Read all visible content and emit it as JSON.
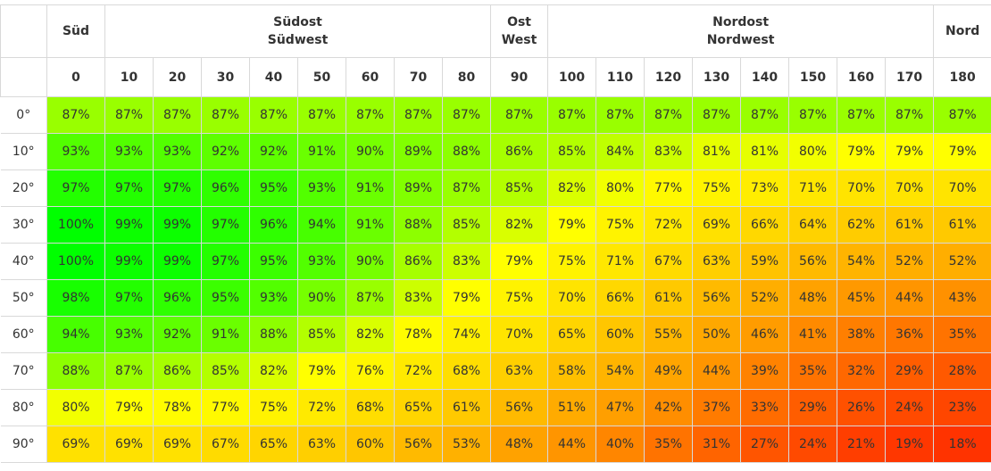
{
  "chart_data": {
    "type": "heatmap",
    "direction_groups": [
      {
        "labels": [
          "Süd"
        ],
        "span": 1
      },
      {
        "labels": [
          "Südost",
          "Südwest"
        ],
        "span": 8
      },
      {
        "labels": [
          "Ost",
          "West"
        ],
        "span": 1
      },
      {
        "labels": [
          "Nordost",
          "Nordwest"
        ],
        "span": 8
      },
      {
        "labels": [
          "Nord"
        ],
        "span": 1
      }
    ],
    "x_values": [
      "0",
      "10",
      "20",
      "30",
      "40",
      "50",
      "60",
      "70",
      "80",
      "90",
      "100",
      "110",
      "120",
      "130",
      "140",
      "150",
      "160",
      "170",
      "180"
    ],
    "y_labels": [
      "0°",
      "10°",
      "20°",
      "30°",
      "40°",
      "50°",
      "60°",
      "70°",
      "80°",
      "90°"
    ],
    "values": [
      [
        87,
        87,
        87,
        87,
        87,
        87,
        87,
        87,
        87,
        87,
        87,
        87,
        87,
        87,
        87,
        87,
        87,
        87,
        87
      ],
      [
        93,
        93,
        93,
        92,
        92,
        91,
        90,
        89,
        88,
        86,
        85,
        84,
        83,
        81,
        81,
        80,
        79,
        79,
        79
      ],
      [
        97,
        97,
        97,
        96,
        95,
        93,
        91,
        89,
        87,
        85,
        82,
        80,
        77,
        75,
        73,
        71,
        70,
        70,
        70
      ],
      [
        100,
        99,
        99,
        97,
        96,
        94,
        91,
        88,
        85,
        82,
        79,
        75,
        72,
        69,
        66,
        64,
        62,
        61,
        61
      ],
      [
        100,
        99,
        99,
        97,
        95,
        93,
        90,
        86,
        83,
        79,
        75,
        71,
        67,
        63,
        59,
        56,
        54,
        52,
        52
      ],
      [
        98,
        97,
        96,
        95,
        93,
        90,
        87,
        83,
        79,
        75,
        70,
        66,
        61,
        56,
        52,
        48,
        45,
        44,
        43
      ],
      [
        94,
        93,
        92,
        91,
        88,
        85,
        82,
        78,
        74,
        70,
        65,
        60,
        55,
        50,
        46,
        41,
        38,
        36,
        35
      ],
      [
        88,
        87,
        86,
        85,
        82,
        79,
        76,
        72,
        68,
        63,
        58,
        54,
        49,
        44,
        39,
        35,
        32,
        29,
        28
      ],
      [
        80,
        79,
        78,
        77,
        75,
        72,
        68,
        65,
        61,
        56,
        51,
        47,
        42,
        37,
        33,
        29,
        26,
        24,
        23
      ],
      [
        69,
        69,
        69,
        67,
        65,
        63,
        60,
        56,
        53,
        48,
        44,
        40,
        35,
        31,
        27,
        24,
        21,
        19,
        18
      ]
    ],
    "value_suffix": "%",
    "color_scale": [
      {
        "value": 18,
        "color": "#ff3300"
      },
      {
        "value": 45,
        "color": "#ff9900"
      },
      {
        "value": 62,
        "color": "#ffcc00"
      },
      {
        "value": 79,
        "color": "#ffff00"
      },
      {
        "value": 87,
        "color": "#99ff00"
      },
      {
        "value": 100,
        "color": "#00ff00"
      }
    ]
  }
}
